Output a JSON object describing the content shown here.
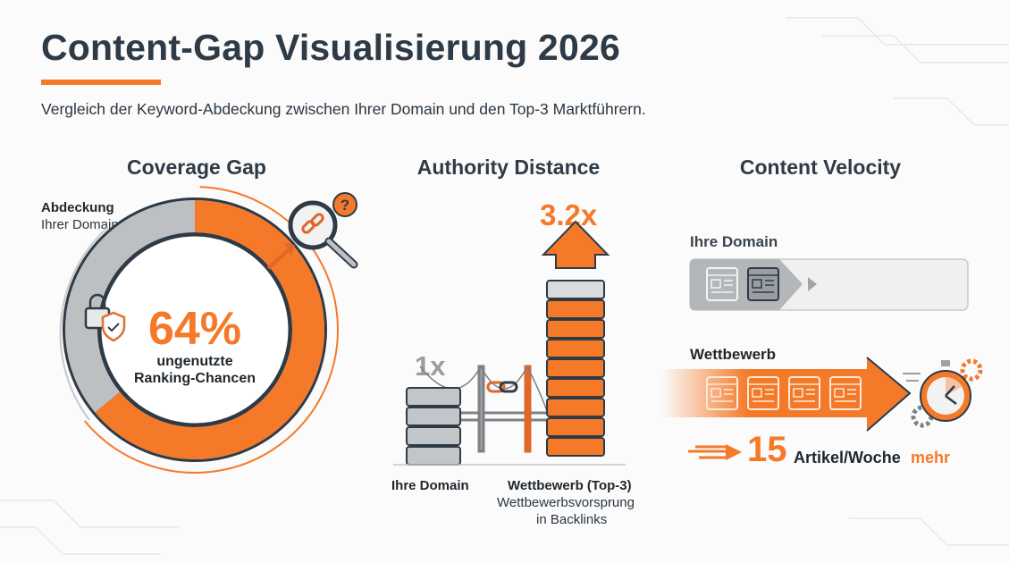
{
  "header": {
    "title": "Content-Gap Visualisierung 2026",
    "subtitle": "Vergleich der Keyword-Abdeckung zwischen Ihrer Domain und den Top-3 Marktführern."
  },
  "colors": {
    "accent": "#f47a2a",
    "gray": "#b9bcbf",
    "dark": "#2e3b47"
  },
  "coverage": {
    "heading": "Coverage Gap",
    "domain_label_bold": "Abdeckung",
    "domain_label": "Ihrer Domain",
    "gap_percent": 64,
    "value_text": "64%",
    "caption_line1": "ungenutzte",
    "caption_line2": "Ranking-Chancen",
    "icons": [
      "lock-icon",
      "shield-check-icon",
      "magnifier-broken-link-icon",
      "question-icon"
    ]
  },
  "authority": {
    "heading": "Authority Distance",
    "own_multiplier": "1x",
    "competitor_multiplier": "3.2x",
    "own_label": "Ihre Domain",
    "competitor_label": "Wettbewerb (Top-3)",
    "caption_line1": "Wettbewerbsvorsprung",
    "caption_line2": "in Backlinks"
  },
  "velocity": {
    "heading": "Content Velocity",
    "own_label": "Ihre Domain",
    "competitor_label": "Wettbewerb",
    "own_articles": 2,
    "competitor_articles": 4,
    "number": "15",
    "unit": "Artikel/Woche",
    "suffix": "mehr"
  }
}
